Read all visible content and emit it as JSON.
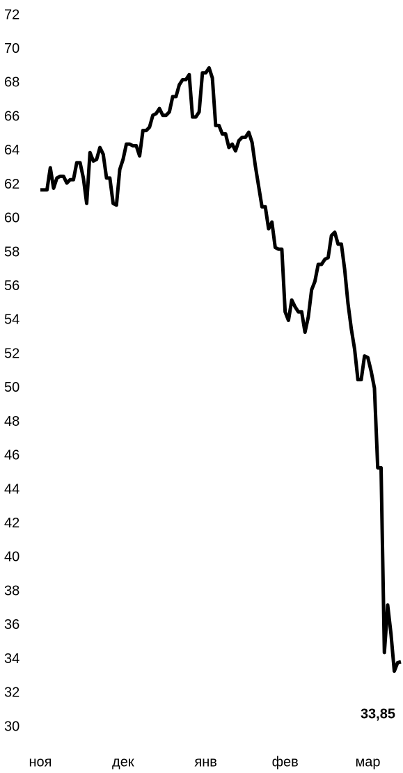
{
  "chart_data": {
    "type": "line",
    "categories": [
      "ноя",
      null,
      null,
      null,
      null,
      null,
      null,
      null,
      null,
      null,
      null,
      null,
      null,
      null,
      null,
      null,
      null,
      null,
      null,
      null,
      null,
      null,
      null,
      null,
      null,
      "дек",
      null,
      null,
      null,
      null,
      null,
      null,
      null,
      null,
      null,
      null,
      null,
      null,
      null,
      null,
      null,
      null,
      null,
      null,
      null,
      null,
      null,
      null,
      null,
      null,
      "янв",
      null,
      null,
      null,
      null,
      null,
      null,
      null,
      null,
      null,
      null,
      null,
      null,
      null,
      null,
      null,
      null,
      null,
      null,
      null,
      null,
      null,
      null,
      null,
      "фев",
      null,
      null,
      null,
      null,
      null,
      null,
      null,
      null,
      null,
      null,
      null,
      null,
      null,
      null,
      null,
      null,
      null,
      null,
      null,
      null,
      null,
      null,
      null,
      null,
      "мар",
      null,
      null,
      null,
      null,
      null,
      null,
      null,
      null,
      null,
      null
    ],
    "series": [
      {
        "color": "#000000",
        "values": [
          61.7,
          61.7,
          61.7,
          63.0,
          61.8,
          62.4,
          62.5,
          62.5,
          62.1,
          62.3,
          62.3,
          63.3,
          63.3,
          62.4,
          60.9,
          63.9,
          63.4,
          63.5,
          64.2,
          63.8,
          62.4,
          62.4,
          60.9,
          60.8,
          62.9,
          63.5,
          64.4,
          64.4,
          64.3,
          64.3,
          63.7,
          65.2,
          65.2,
          65.4,
          66.1,
          66.2,
          66.5,
          66.1,
          66.1,
          66.3,
          67.2,
          67.2,
          67.9,
          68.2,
          68.2,
          68.5,
          66.0,
          66.0,
          66.3,
          68.6,
          68.6,
          68.9,
          68.3,
          65.5,
          65.5,
          65.0,
          65.0,
          64.2,
          64.4,
          64.0,
          64.6,
          64.8,
          64.8,
          65.1,
          64.5,
          63.1,
          61.9,
          60.7,
          60.7,
          59.4,
          59.8,
          58.3,
          58.2,
          58.2,
          54.5,
          54.0,
          55.2,
          54.8,
          54.5,
          54.5,
          53.3,
          54.2,
          55.8,
          56.3,
          57.3,
          57.3,
          57.6,
          57.7,
          59.0,
          59.2,
          58.5,
          58.5,
          57.0,
          55.0,
          53.5,
          52.3,
          50.5,
          50.5,
          51.9,
          51.8,
          51.0,
          50.0,
          45.3,
          45.3,
          34.4,
          37.2,
          35.5,
          33.3,
          33.8,
          33.85
        ],
        "value_labels": [
          null,
          null,
          null,
          null,
          null,
          null,
          null,
          null,
          null,
          null,
          null,
          null,
          null,
          null,
          null,
          null,
          null,
          null,
          null,
          null,
          null,
          null,
          null,
          null,
          null,
          null,
          null,
          null,
          null,
          null,
          null,
          null,
          null,
          null,
          null,
          null,
          null,
          null,
          null,
          null,
          null,
          null,
          null,
          null,
          null,
          null,
          null,
          null,
          null,
          null,
          null,
          null,
          null,
          null,
          null,
          null,
          null,
          null,
          null,
          null,
          null,
          null,
          null,
          null,
          null,
          null,
          null,
          null,
          null,
          null,
          null,
          null,
          null,
          null,
          null,
          null,
          null,
          null,
          null,
          null,
          null,
          null,
          null,
          null,
          null,
          null,
          null,
          null,
          null,
          null,
          null,
          null,
          null,
          null,
          null,
          null,
          null,
          null,
          null,
          null,
          null,
          null,
          null,
          null,
          null,
          null,
          null,
          null,
          null,
          "33,85"
        ]
      }
    ],
    "ylim": [
      30,
      72
    ],
    "yticks": [
      30,
      32,
      34,
      36,
      38,
      40,
      42,
      44,
      46,
      48,
      50,
      52,
      54,
      56,
      58,
      60,
      62,
      64,
      66,
      68,
      70,
      72
    ],
    "grid": false
  }
}
